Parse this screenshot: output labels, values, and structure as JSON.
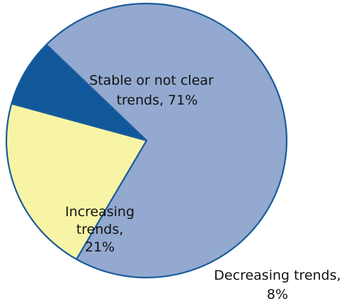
{
  "chart_data": {
    "type": "pie",
    "slices": [
      {
        "label_lines": [
          "Stable or not clear",
          "trends, 71%"
        ],
        "value": 71,
        "color": "#93a9cf"
      },
      {
        "label_lines": [
          "Decreasing trends,",
          "8%"
        ],
        "value": 8,
        "color": "#11589a"
      },
      {
        "label_lines": [
          "Increasing",
          "trends,",
          "21%"
        ],
        "value": 21,
        "color": "#f7f5a5"
      }
    ]
  }
}
